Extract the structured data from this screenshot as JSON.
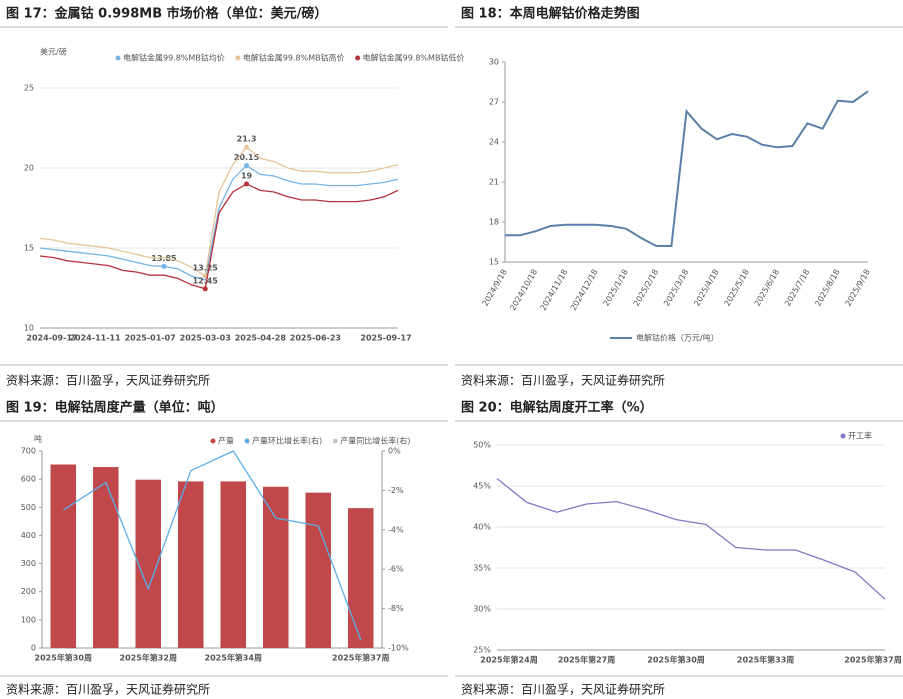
{
  "chart_data": [
    {
      "type": "line",
      "title": "图 17：金属钴 0.998MB 市场价格（单位：美元/磅）",
      "source": "资料来源：百川盈孚，天风证券研究所",
      "y_label": "美元/磅",
      "categories": [
        "2024-09-17",
        null,
        null,
        null,
        "2024-11-11",
        null,
        null,
        null,
        "2025-01-07",
        null,
        null,
        null,
        "2025-03-03",
        null,
        null,
        null,
        "2025-04-28",
        null,
        null,
        null,
        "2025-06-23",
        null,
        null,
        null,
        null,
        null,
        "2025-09-17"
      ],
      "ylim": [
        10,
        25
      ],
      "yticks": [
        10,
        15,
        20,
        25
      ],
      "grid": true,
      "series": [
        {
          "name": "电解钴金属99.8%MB钴均价",
          "color": "#74b4e6",
          "values": [
            15.0,
            14.9,
            14.8,
            14.7,
            14.6,
            14.5,
            14.3,
            14.1,
            13.9,
            13.85,
            13.7,
            13.25,
            13.0,
            17.5,
            19.3,
            20.15,
            19.6,
            19.5,
            19.2,
            19.0,
            19.0,
            18.9,
            18.9,
            18.9,
            19.0,
            19.1,
            19.3
          ],
          "value_labels": [
            null,
            null,
            null,
            null,
            null,
            null,
            null,
            null,
            null,
            "13.85",
            null,
            null,
            null,
            null,
            null,
            "20.15",
            null,
            null,
            null,
            null,
            null,
            null,
            null,
            null,
            null,
            null,
            null
          ]
        },
        {
          "name": "电解钴金属99.8%MB钴高价",
          "color": "#e6c49a",
          "values": [
            15.6,
            15.5,
            15.3,
            15.2,
            15.1,
            15.0,
            14.8,
            14.6,
            14.4,
            14.4,
            14.2,
            13.8,
            13.25,
            18.5,
            20.2,
            21.3,
            20.6,
            20.4,
            20.0,
            19.8,
            19.8,
            19.7,
            19.7,
            19.7,
            19.8,
            20.0,
            20.2
          ],
          "value_labels": [
            null,
            null,
            null,
            null,
            null,
            null,
            null,
            null,
            null,
            null,
            null,
            null,
            "13.25",
            null,
            null,
            "21.3",
            null,
            null,
            null,
            null,
            null,
            null,
            null,
            null,
            null,
            null,
            null
          ]
        },
        {
          "name": "电解钴金属99.8%MB钴低价",
          "color": "#b5313b",
          "values": [
            14.5,
            14.4,
            14.2,
            14.1,
            14.0,
            13.9,
            13.6,
            13.5,
            13.3,
            13.3,
            13.1,
            12.7,
            12.45,
            17.2,
            18.5,
            19.0,
            18.6,
            18.5,
            18.2,
            18.0,
            18.0,
            17.9,
            17.9,
            17.9,
            18.0,
            18.2,
            18.6
          ],
          "value_labels": [
            null,
            null,
            null,
            null,
            null,
            null,
            null,
            null,
            null,
            null,
            null,
            null,
            "12.45",
            null,
            null,
            "19",
            null,
            null,
            null,
            null,
            null,
            null,
            null,
            null,
            null,
            null,
            null
          ]
        }
      ]
    },
    {
      "type": "line",
      "title": "图 18：本周电解钴价格走势图",
      "source": "资料来源：百川盈孚，天风证券研究所",
      "categories": [
        "2024/9/18",
        null,
        "2024/10/18",
        null,
        "2024/11/18",
        null,
        "2024/12/18",
        null,
        "2025/1/18",
        null,
        "2025/2/18",
        null,
        "2025/3/18",
        null,
        "2025/4/18",
        null,
        "2025/5/18",
        null,
        "2025/6/18",
        null,
        "2025/7/18",
        null,
        "2025/8/18",
        null,
        "2025/9/18"
      ],
      "ylim": [
        15,
        30
      ],
      "yticks": [
        15,
        18,
        21,
        24,
        27,
        30
      ],
      "grid": false,
      "rotate_x_labels": true,
      "series": [
        {
          "name": "电解钴价格（万元/吨）",
          "color": "#5a7fa8",
          "values": [
            17.0,
            17.0,
            17.3,
            17.7,
            17.8,
            17.8,
            17.8,
            17.7,
            17.5,
            16.8,
            16.2,
            16.2,
            26.3,
            25.0,
            24.2,
            24.6,
            24.4,
            23.8,
            23.6,
            23.7,
            25.4,
            25.0,
            27.1,
            27.0,
            27.8
          ]
        }
      ]
    },
    {
      "type": "bar",
      "title": "图 19：电解钴周度产量（单位：吨）",
      "source": "资料来源：百川盈孚，天风证券研究所",
      "y_label": "吨",
      "categories": [
        "2025年第30周",
        null,
        "2025年第32周",
        null,
        "2025年第34周",
        null,
        null,
        "2025年第37周"
      ],
      "ylim": [
        0,
        700
      ],
      "yticks": [
        0,
        100,
        200,
        300,
        400,
        500,
        600,
        700
      ],
      "grid": false,
      "y2lim": [
        -10,
        0
      ],
      "y2ticks": [
        {
          "value": 0,
          "label": "0%"
        },
        {
          "value": -2,
          "label": "-2%"
        },
        {
          "value": -4,
          "label": "-4%"
        },
        {
          "value": -6,
          "label": "-6%"
        },
        {
          "value": -8,
          "label": "-8%"
        },
        {
          "value": -10,
          "label": "-10%"
        }
      ],
      "series": [
        {
          "name": "产量",
          "color": "#c0474a",
          "values": [
            652,
            643,
            598,
            592,
            592,
            573,
            552,
            497
          ]
        },
        {
          "name": "产量环比增长率(右)",
          "color": "#5aaee8",
          "axis": "y2",
          "values": [
            -3.0,
            -1.6,
            -7.0,
            -1.0,
            0.0,
            -3.4,
            -3.8,
            -9.6
          ]
        },
        {
          "name": "产量同比增长率(右)",
          "color": "#c8c8c8",
          "axis": "y2",
          "values": [
            null,
            null,
            null,
            null,
            null,
            null,
            null,
            null
          ]
        }
      ]
    },
    {
      "type": "line",
      "title": "图 20：电解钴周度开工率（%）",
      "source": "资料来源：百川盈孚，天风证券研究所",
      "categories": [
        "2025年第24周",
        null,
        null,
        "2025年第27周",
        null,
        null,
        "2025年第30周",
        null,
        null,
        "2025年第33周",
        null,
        null,
        null,
        "2025年第37周"
      ],
      "ylim": [
        25,
        50
      ],
      "yticks": [
        {
          "value": 25,
          "label": "25%"
        },
        {
          "value": 30,
          "label": "30%"
        },
        {
          "value": 35,
          "label": "35%"
        },
        {
          "value": 40,
          "label": "40%"
        },
        {
          "value": 45,
          "label": "45%"
        },
        {
          "value": 50,
          "label": "50%"
        }
      ],
      "grid": true,
      "series": [
        {
          "name": "开工率",
          "color": "#8478c4",
          "values": [
            45.9,
            43.0,
            41.8,
            42.8,
            43.1,
            42.1,
            40.9,
            40.3,
            37.5,
            37.2,
            37.2,
            35.9,
            34.5,
            31.2
          ]
        }
      ]
    }
  ]
}
